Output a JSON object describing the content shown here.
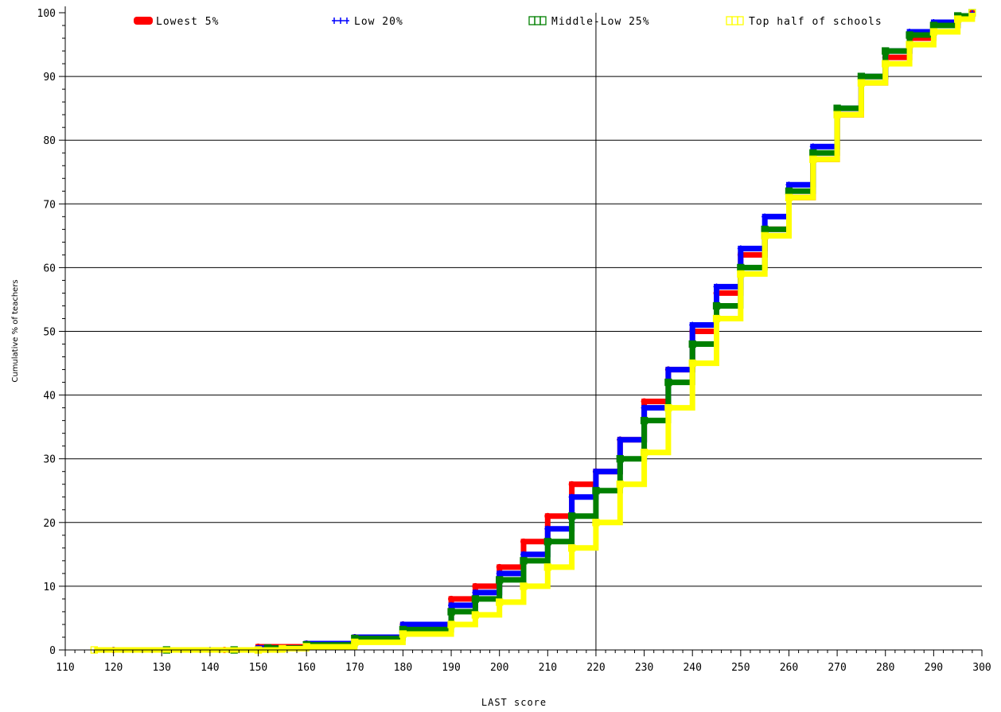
{
  "chart_data": {
    "type": "line",
    "title": "",
    "xlabel": "LAST score",
    "ylabel": "Cumulative % of teachers",
    "xlim": [
      110,
      300
    ],
    "ylim": [
      0,
      100
    ],
    "x_ticks": [
      "110",
      "120",
      "130",
      "140",
      "150",
      "160",
      "170",
      "180",
      "190",
      "200",
      "210",
      "220",
      "230",
      "240",
      "250",
      "260",
      "270",
      "280",
      "290",
      "300"
    ],
    "y_ticks": [
      "0",
      "10",
      "20",
      "30",
      "40",
      "50",
      "60",
      "70",
      "80",
      "90",
      "100"
    ],
    "reference_line_x": 220,
    "grid": "horizontal",
    "legend_position": "top",
    "series": [
      {
        "name": "Lowest 5%",
        "color": "#ff0000",
        "marker": "dot",
        "points": [
          [
            120,
            0
          ],
          [
            143,
            0
          ],
          [
            150,
            0.5
          ],
          [
            160,
            1
          ],
          [
            170,
            2
          ],
          [
            180,
            4
          ],
          [
            190,
            8
          ],
          [
            195,
            10
          ],
          [
            200,
            13
          ],
          [
            205,
            17
          ],
          [
            210,
            21
          ],
          [
            215,
            26
          ],
          [
            220,
            28
          ],
          [
            225,
            33
          ],
          [
            230,
            39
          ],
          [
            235,
            44
          ],
          [
            240,
            50
          ],
          [
            245,
            56
          ],
          [
            250,
            62
          ],
          [
            255,
            66
          ],
          [
            260,
            71
          ],
          [
            265,
            77
          ],
          [
            270,
            84
          ],
          [
            275,
            89
          ],
          [
            280,
            93
          ],
          [
            285,
            96
          ],
          [
            290,
            98
          ],
          [
            295,
            99.5
          ],
          [
            298,
            100
          ]
        ]
      },
      {
        "name": "Low 20%",
        "color": "#0000ff",
        "marker": "plus",
        "points": [
          [
            120,
            0
          ],
          [
            140,
            0
          ],
          [
            150,
            0.3
          ],
          [
            160,
            1
          ],
          [
            170,
            2
          ],
          [
            180,
            4
          ],
          [
            190,
            7
          ],
          [
            195,
            9
          ],
          [
            200,
            12
          ],
          [
            205,
            15
          ],
          [
            210,
            19
          ],
          [
            215,
            24
          ],
          [
            220,
            28
          ],
          [
            225,
            33
          ],
          [
            230,
            38
          ],
          [
            235,
            44
          ],
          [
            240,
            51
          ],
          [
            245,
            57
          ],
          [
            250,
            63
          ],
          [
            255,
            68
          ],
          [
            260,
            73
          ],
          [
            265,
            79
          ],
          [
            270,
            85
          ],
          [
            275,
            90
          ],
          [
            280,
            94
          ],
          [
            285,
            97
          ],
          [
            290,
            98.5
          ],
          [
            295,
            99.5
          ],
          [
            298,
            100
          ]
        ]
      },
      {
        "name": "Middle-Low 25%",
        "color": "#008000",
        "marker": "square",
        "points": [
          [
            131,
            0
          ],
          [
            145,
            0
          ],
          [
            152,
            0.3
          ],
          [
            160,
            0.8
          ],
          [
            170,
            1.8
          ],
          [
            180,
            3.2
          ],
          [
            190,
            6
          ],
          [
            195,
            8
          ],
          [
            200,
            11
          ],
          [
            205,
            14
          ],
          [
            210,
            17
          ],
          [
            215,
            21
          ],
          [
            220,
            25
          ],
          [
            225,
            30
          ],
          [
            230,
            36
          ],
          [
            235,
            42
          ],
          [
            240,
            48
          ],
          [
            245,
            54
          ],
          [
            250,
            60
          ],
          [
            255,
            66
          ],
          [
            260,
            72
          ],
          [
            265,
            78
          ],
          [
            270,
            85
          ],
          [
            275,
            90
          ],
          [
            280,
            94
          ],
          [
            285,
            96.5
          ],
          [
            290,
            98
          ],
          [
            295,
            99.5
          ],
          [
            298,
            100
          ]
        ]
      },
      {
        "name": "Top half of schools",
        "color": "#ffff00",
        "marker": "square",
        "points": [
          [
            116,
            0
          ],
          [
            150,
            0
          ],
          [
            155,
            0.2
          ],
          [
            160,
            0.5
          ],
          [
            170,
            1.2
          ],
          [
            180,
            2.5
          ],
          [
            190,
            4
          ],
          [
            195,
            5.5
          ],
          [
            200,
            7.5
          ],
          [
            205,
            10
          ],
          [
            210,
            13
          ],
          [
            215,
            16
          ],
          [
            220,
            20
          ],
          [
            225,
            26
          ],
          [
            230,
            31
          ],
          [
            235,
            38
          ],
          [
            240,
            45
          ],
          [
            245,
            52
          ],
          [
            250,
            59
          ],
          [
            255,
            65
          ],
          [
            260,
            71
          ],
          [
            265,
            77
          ],
          [
            270,
            84
          ],
          [
            275,
            89
          ],
          [
            280,
            92
          ],
          [
            285,
            95
          ],
          [
            290,
            97
          ],
          [
            295,
            99
          ],
          [
            298,
            100
          ]
        ]
      }
    ]
  }
}
